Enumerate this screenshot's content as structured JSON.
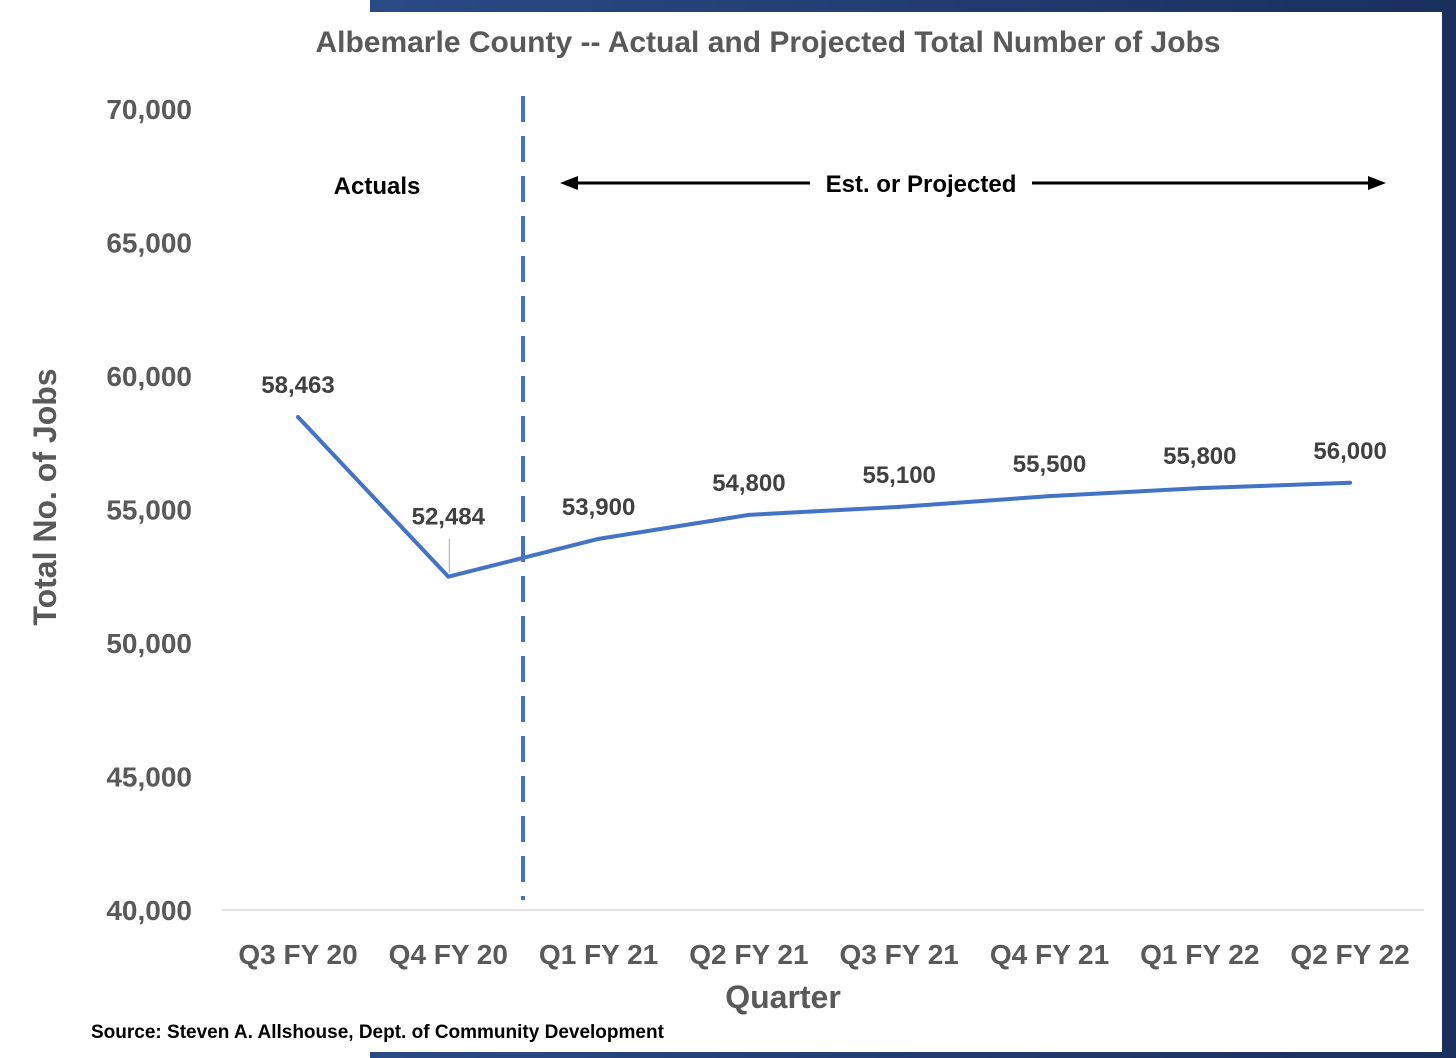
{
  "chart_data": {
    "type": "line",
    "title": "Albemarle County -- Actual and Projected Total Number of Jobs",
    "xlabel": "Quarter",
    "ylabel": "Total No. of Jobs",
    "ylim": [
      40000,
      70000
    ],
    "yticks": [
      "40,000",
      "45,000",
      "50,000",
      "55,000",
      "60,000",
      "65,000",
      "70,000"
    ],
    "categories": [
      "Q3 FY 20",
      "Q4 FY 20",
      "Q1 FY 21",
      "Q2 FY 21",
      "Q3 FY 21",
      "Q4 FY 21",
      "Q1 FY 22",
      "Q2 FY 22"
    ],
    "series": [
      {
        "values": [
          58463,
          52484,
          53900,
          54800,
          55100,
          55500,
          55800,
          56000
        ],
        "labels": [
          "58,463",
          "52,484",
          "53,900",
          "54,800",
          "55,100",
          "55,500",
          "55,800",
          "56,000"
        ],
        "color": "#4472c4"
      }
    ],
    "grid": false,
    "annotations": {
      "actuals": "Actuals",
      "projected": "Est. or Projected"
    },
    "divider_color": "#4472c4",
    "source": "Source:  Steven A. Allshouse, Dept. of Community Development"
  }
}
